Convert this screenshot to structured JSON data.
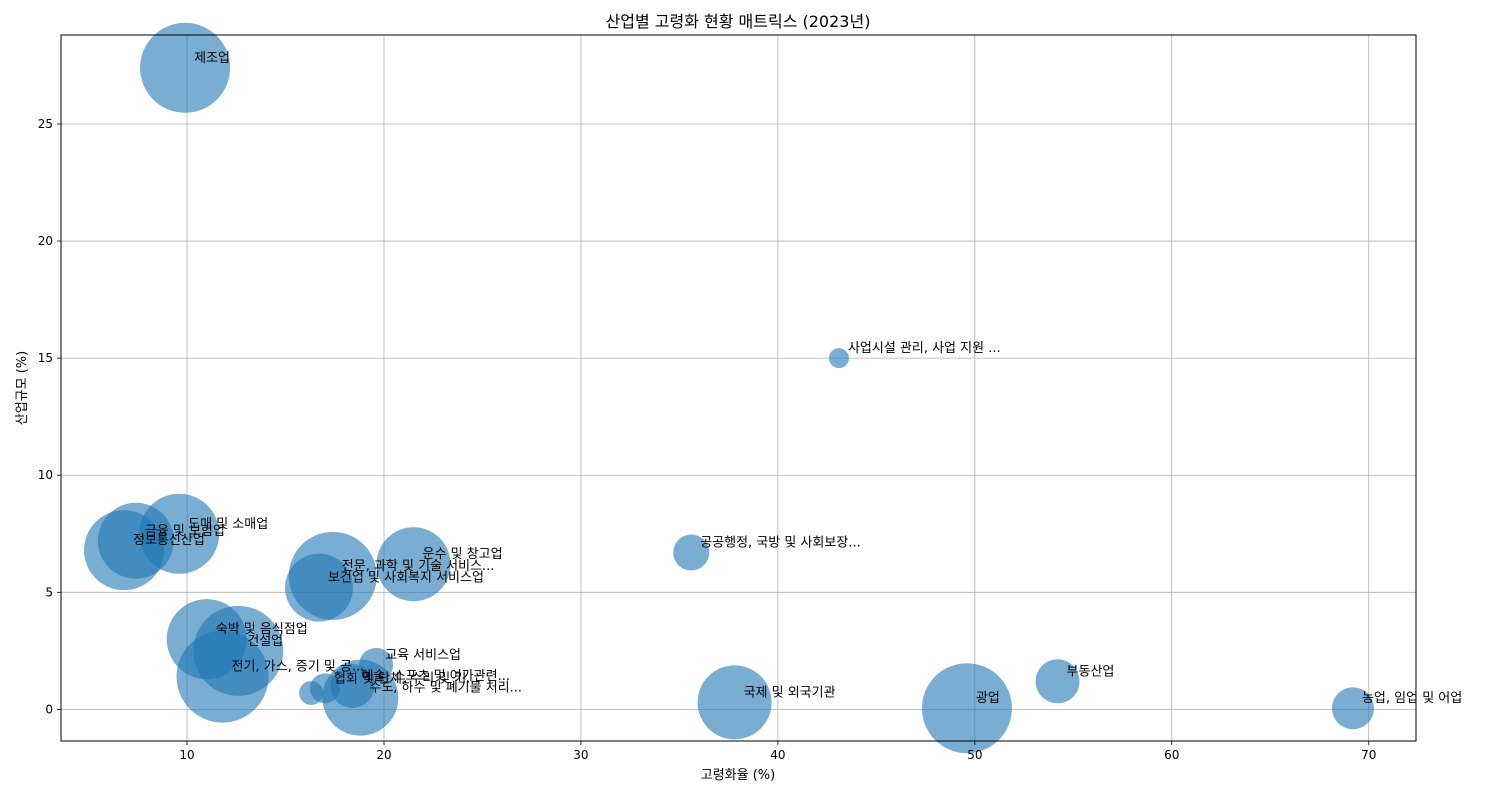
{
  "chart_data": {
    "type": "scatter",
    "title": "산업별 고령화 현황 매트릭스 (2023년)",
    "xlabel": "고령화율 (%)",
    "ylabel": "산업규모 (%)",
    "xlim": [
      3.6,
      72.4
    ],
    "ylim": [
      -1.35,
      28.8
    ],
    "xticks": [
      10,
      20,
      30,
      40,
      50,
      60,
      70
    ],
    "yticks": [
      0,
      5,
      10,
      15,
      20,
      25
    ],
    "grid": true,
    "color": "#1f77b4",
    "points": [
      {
        "label": "제조업",
        "x": 9.9,
        "y": 27.4,
        "size": 45
      },
      {
        "label": "사업시설 관리, 사업 지원 ...",
        "x": 43.1,
        "y": 15.0,
        "size": 10
      },
      {
        "label": "도매 및 소매업",
        "x": 9.6,
        "y": 7.5,
        "size": 40
      },
      {
        "label": "금융 및 보험업",
        "x": 7.4,
        "y": 7.2,
        "size": 38
      },
      {
        "label": "정보통신산업",
        "x": 6.8,
        "y": 6.8,
        "size": 40
      },
      {
        "label": "운수 및 창고업",
        "x": 21.5,
        "y": 6.2,
        "size": 37
      },
      {
        "label": "공공행정, 국방 및 사회보장...",
        "x": 35.6,
        "y": 6.7,
        "size": 18
      },
      {
        "label": "전문, 과학 및 기술 서비스...",
        "x": 17.4,
        "y": 5.7,
        "size": 44
      },
      {
        "label": "보건업 및 사회복지 서비스업",
        "x": 16.7,
        "y": 5.2,
        "size": 34
      },
      {
        "label": "숙박 및 음식점업",
        "x": 11.0,
        "y": 3.0,
        "size": 40
      },
      {
        "label": "건설업",
        "x": 12.6,
        "y": 2.5,
        "size": 45
      },
      {
        "label": "교육 서비스업",
        "x": 19.6,
        "y": 1.9,
        "size": 17
      },
      {
        "label": "전기, 가스, 증기 및 공...",
        "x": 11.8,
        "y": 1.4,
        "size": 46
      },
      {
        "label": "예술, 스포츠 및 여가관련...",
        "x": 18.4,
        "y": 1.0,
        "size": 22
      },
      {
        "label": "협회 및 단체, 수리 및 기...",
        "x": 17.0,
        "y": 0.9,
        "size": 15
      },
      {
        "label": "수도, 하수 및 폐기물 처리...",
        "x": 18.8,
        "y": 0.5,
        "size": 38
      },
      {
        "label": "",
        "x": 16.3,
        "y": 0.7,
        "size": 12
      },
      {
        "label": "부동산업",
        "x": 54.2,
        "y": 1.2,
        "size": 22
      },
      {
        "label": "국제 및 외국기관",
        "x": 37.8,
        "y": 0.3,
        "size": 37
      },
      {
        "label": "광업",
        "x": 49.6,
        "y": 0.05,
        "size": 45
      },
      {
        "label": "농업, 임업 및 어업",
        "x": 69.2,
        "y": 0.05,
        "size": 21
      }
    ]
  }
}
